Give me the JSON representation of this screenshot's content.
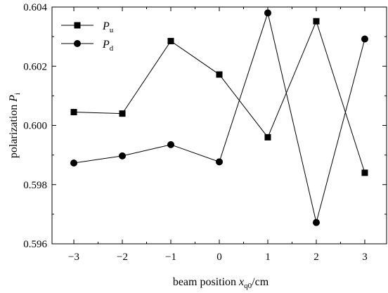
{
  "chart_data": {
    "type": "line",
    "x": [
      -3,
      -2,
      -1,
      0,
      1,
      2,
      3
    ],
    "x_tick_labels": [
      "−3",
      "−2",
      "−1",
      "0",
      "1",
      "2",
      "3"
    ],
    "xlim": [
      -3.45,
      3.45
    ],
    "ylim": [
      0.596,
      0.604
    ],
    "y_ticks": [
      0.596,
      0.598,
      0.6,
      0.602,
      0.604
    ],
    "y_tick_labels": [
      "0.596",
      "0.598",
      "0.600",
      "0.602",
      "0.604"
    ],
    "xlabel": {
      "prefix": "beam position ",
      "var": "x",
      "sub": "q0",
      "suffix": "/cm"
    },
    "ylabel": {
      "prefix": "polarization ",
      "var": "P",
      "sub": "i"
    },
    "legend_position": "top-left",
    "grid": false,
    "series": [
      {
        "name": "P",
        "name_sub": "u",
        "marker": "square",
        "color": "#000000",
        "values": [
          0.60045,
          0.6004,
          0.60285,
          0.60172,
          0.5996,
          0.60352,
          0.5984
        ]
      },
      {
        "name": "P",
        "name_sub": "d",
        "marker": "circle",
        "color": "#000000",
        "values": [
          0.59873,
          0.59897,
          0.59935,
          0.59877,
          0.6038,
          0.59672,
          0.60292
        ]
      }
    ]
  }
}
